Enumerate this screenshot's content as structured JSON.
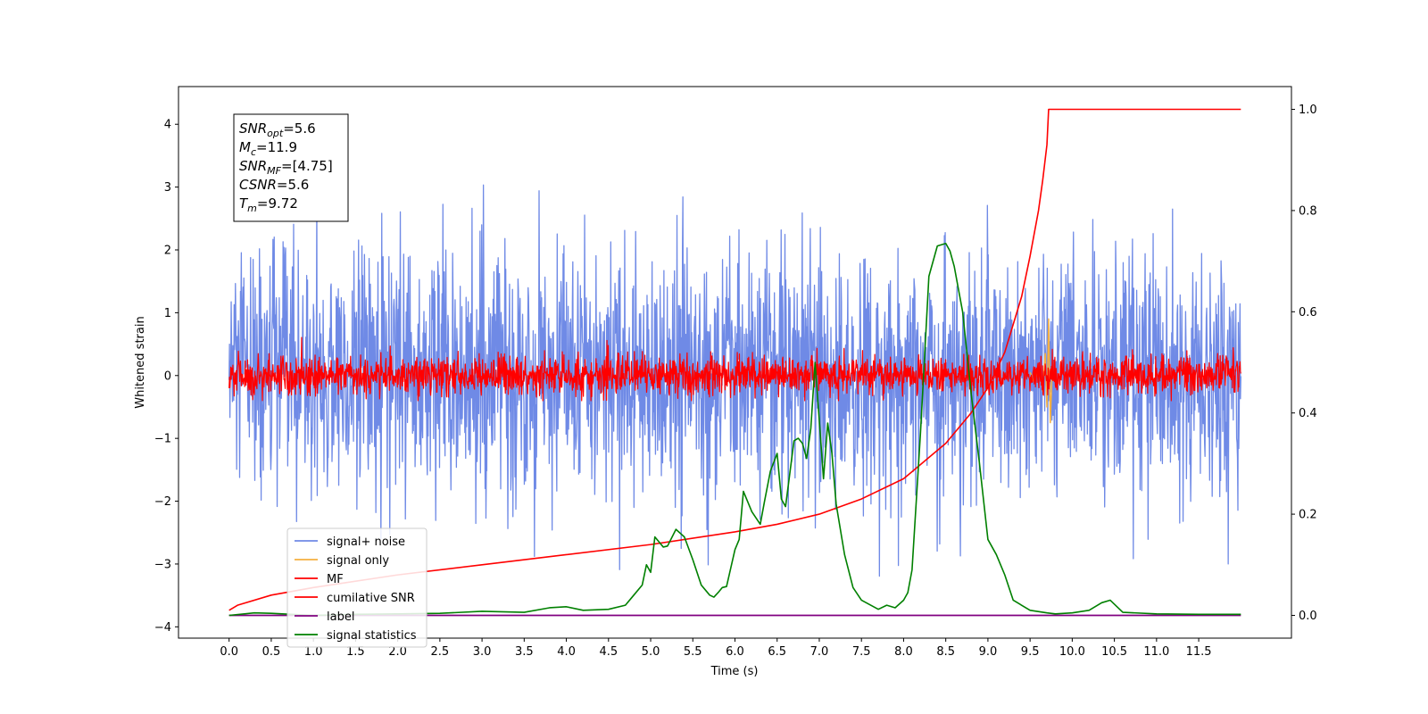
{
  "chart_data": {
    "type": "line",
    "xlabel": "Time (s)",
    "ylabel": "Whitened strain",
    "xlim": [
      -0.6,
      12.6
    ],
    "ylim": [
      -4.18,
      4.6
    ],
    "y2lim": [
      -0.045,
      1.045
    ],
    "x_ticks": [
      "0.0",
      "0.5",
      "1.0",
      "1.5",
      "2.0",
      "2.5",
      "3.0",
      "3.5",
      "4.0",
      "4.5",
      "5.0",
      "5.5",
      "6.0",
      "6.5",
      "7.0",
      "7.5",
      "8.0",
      "8.5",
      "9.0",
      "9.5",
      "10.0",
      "10.5",
      "11.0",
      "11.5"
    ],
    "y_ticks": [
      "−4",
      "−3",
      "−2",
      "−1",
      "0",
      "1",
      "2",
      "3",
      "4"
    ],
    "y2_ticks": [
      "0.0",
      "0.2",
      "0.4",
      "0.6",
      "0.8",
      "1.0"
    ],
    "colors": {
      "signal_noise": "#6f8ae6",
      "signal_only": "#f5b041",
      "mf": "#ff0000",
      "cumulative_snr": "#ff0000",
      "label": "#800080",
      "signal_statistics": "#008000"
    },
    "legend": {
      "position": "lower-left",
      "entries": [
        "signal+ noise",
        "signal only",
        "MF",
        "cumilative SNR",
        "label",
        "signal statistics"
      ]
    },
    "annotation": {
      "lines": [
        {
          "base": "SNR",
          "sub": "opt",
          "text": "=5.6"
        },
        {
          "base": "M",
          "sub": "c",
          "text": "=11.9"
        },
        {
          "base": "SNR",
          "sub": "MF",
          "text": "=[4.75]"
        },
        {
          "base": "CSNR",
          "sub": "",
          "text": "=5.6"
        },
        {
          "base": "T",
          "sub": "m",
          "text": "=9.72"
        }
      ]
    },
    "series": [
      {
        "name": "signal+ noise",
        "axis": "left",
        "style": "noise band",
        "x_range": [
          0.0,
          12.0
        ],
        "typical_range": [
          -2.2,
          2.2
        ],
        "min": -3.85,
        "max": 4.15
      },
      {
        "name": "signal only",
        "axis": "left",
        "x": [
          9.5,
          9.55,
          9.6,
          9.65,
          9.68,
          9.7,
          9.72,
          9.74,
          9.76
        ],
        "y": [
          0.05,
          -0.1,
          0.15,
          -0.25,
          0.35,
          -0.5,
          0.9,
          -0.75,
          0.0
        ]
      },
      {
        "name": "MF",
        "axis": "left",
        "style": "noise band",
        "x_range": [
          0.0,
          12.0
        ],
        "typical_range": [
          -0.3,
          0.35
        ],
        "min": -0.4,
        "max": 0.95
      },
      {
        "name": "cumilative SNR",
        "axis": "right",
        "x": [
          0.0,
          0.1,
          0.5,
          1.0,
          2.0,
          3.0,
          4.0,
          5.0,
          6.0,
          6.5,
          7.0,
          7.5,
          8.0,
          8.5,
          8.8,
          9.0,
          9.2,
          9.4,
          9.5,
          9.6,
          9.65,
          9.7,
          9.72,
          9.8,
          10.5,
          11.5,
          12.0
        ],
        "y": [
          0.01,
          0.02,
          0.04,
          0.055,
          0.08,
          0.1,
          0.12,
          0.14,
          0.165,
          0.18,
          0.2,
          0.23,
          0.27,
          0.34,
          0.4,
          0.45,
          0.52,
          0.63,
          0.71,
          0.8,
          0.86,
          0.93,
          1.0,
          1.0,
          1.0,
          1.0,
          1.0
        ]
      },
      {
        "name": "label",
        "axis": "right",
        "x": [
          0.0,
          12.0
        ],
        "y": [
          0.0,
          0.0
        ]
      },
      {
        "name": "signal statistics",
        "axis": "right",
        "x": [
          0.0,
          0.3,
          0.5,
          1.0,
          1.5,
          2.0,
          2.5,
          3.0,
          3.5,
          3.8,
          4.0,
          4.2,
          4.5,
          4.7,
          4.8,
          4.9,
          4.95,
          5.0,
          5.05,
          5.15,
          5.2,
          5.3,
          5.4,
          5.5,
          5.6,
          5.7,
          5.75,
          5.8,
          5.85,
          5.9,
          6.0,
          6.05,
          6.1,
          6.2,
          6.3,
          6.35,
          6.42,
          6.5,
          6.55,
          6.6,
          6.7,
          6.75,
          6.8,
          6.85,
          6.9,
          6.95,
          7.05,
          7.1,
          7.15,
          7.2,
          7.3,
          7.4,
          7.5,
          7.7,
          7.8,
          7.9,
          8.0,
          8.05,
          8.1,
          8.2,
          8.3,
          8.4,
          8.5,
          8.55,
          8.6,
          8.7,
          8.8,
          8.9,
          9.0,
          9.1,
          9.2,
          9.3,
          9.5,
          9.7,
          9.8,
          10.0,
          10.2,
          10.35,
          10.45,
          10.6,
          11.0,
          11.5,
          12.0
        ],
        "y": [
          0.0,
          0.005,
          0.004,
          0.0,
          0.002,
          0.003,
          0.004,
          0.008,
          0.006,
          0.015,
          0.017,
          0.01,
          0.012,
          0.02,
          0.04,
          0.06,
          0.1,
          0.085,
          0.155,
          0.135,
          0.137,
          0.17,
          0.155,
          0.11,
          0.06,
          0.04,
          0.036,
          0.045,
          0.055,
          0.057,
          0.13,
          0.15,
          0.245,
          0.205,
          0.18,
          0.225,
          0.285,
          0.32,
          0.23,
          0.215,
          0.345,
          0.35,
          0.34,
          0.31,
          0.37,
          0.5,
          0.27,
          0.38,
          0.32,
          0.22,
          0.12,
          0.055,
          0.03,
          0.012,
          0.02,
          0.015,
          0.03,
          0.045,
          0.09,
          0.36,
          0.67,
          0.73,
          0.735,
          0.72,
          0.69,
          0.6,
          0.44,
          0.3,
          0.15,
          0.12,
          0.08,
          0.03,
          0.01,
          0.005,
          0.003,
          0.005,
          0.01,
          0.025,
          0.03,
          0.006,
          0.003,
          0.002,
          0.002
        ]
      }
    ]
  }
}
